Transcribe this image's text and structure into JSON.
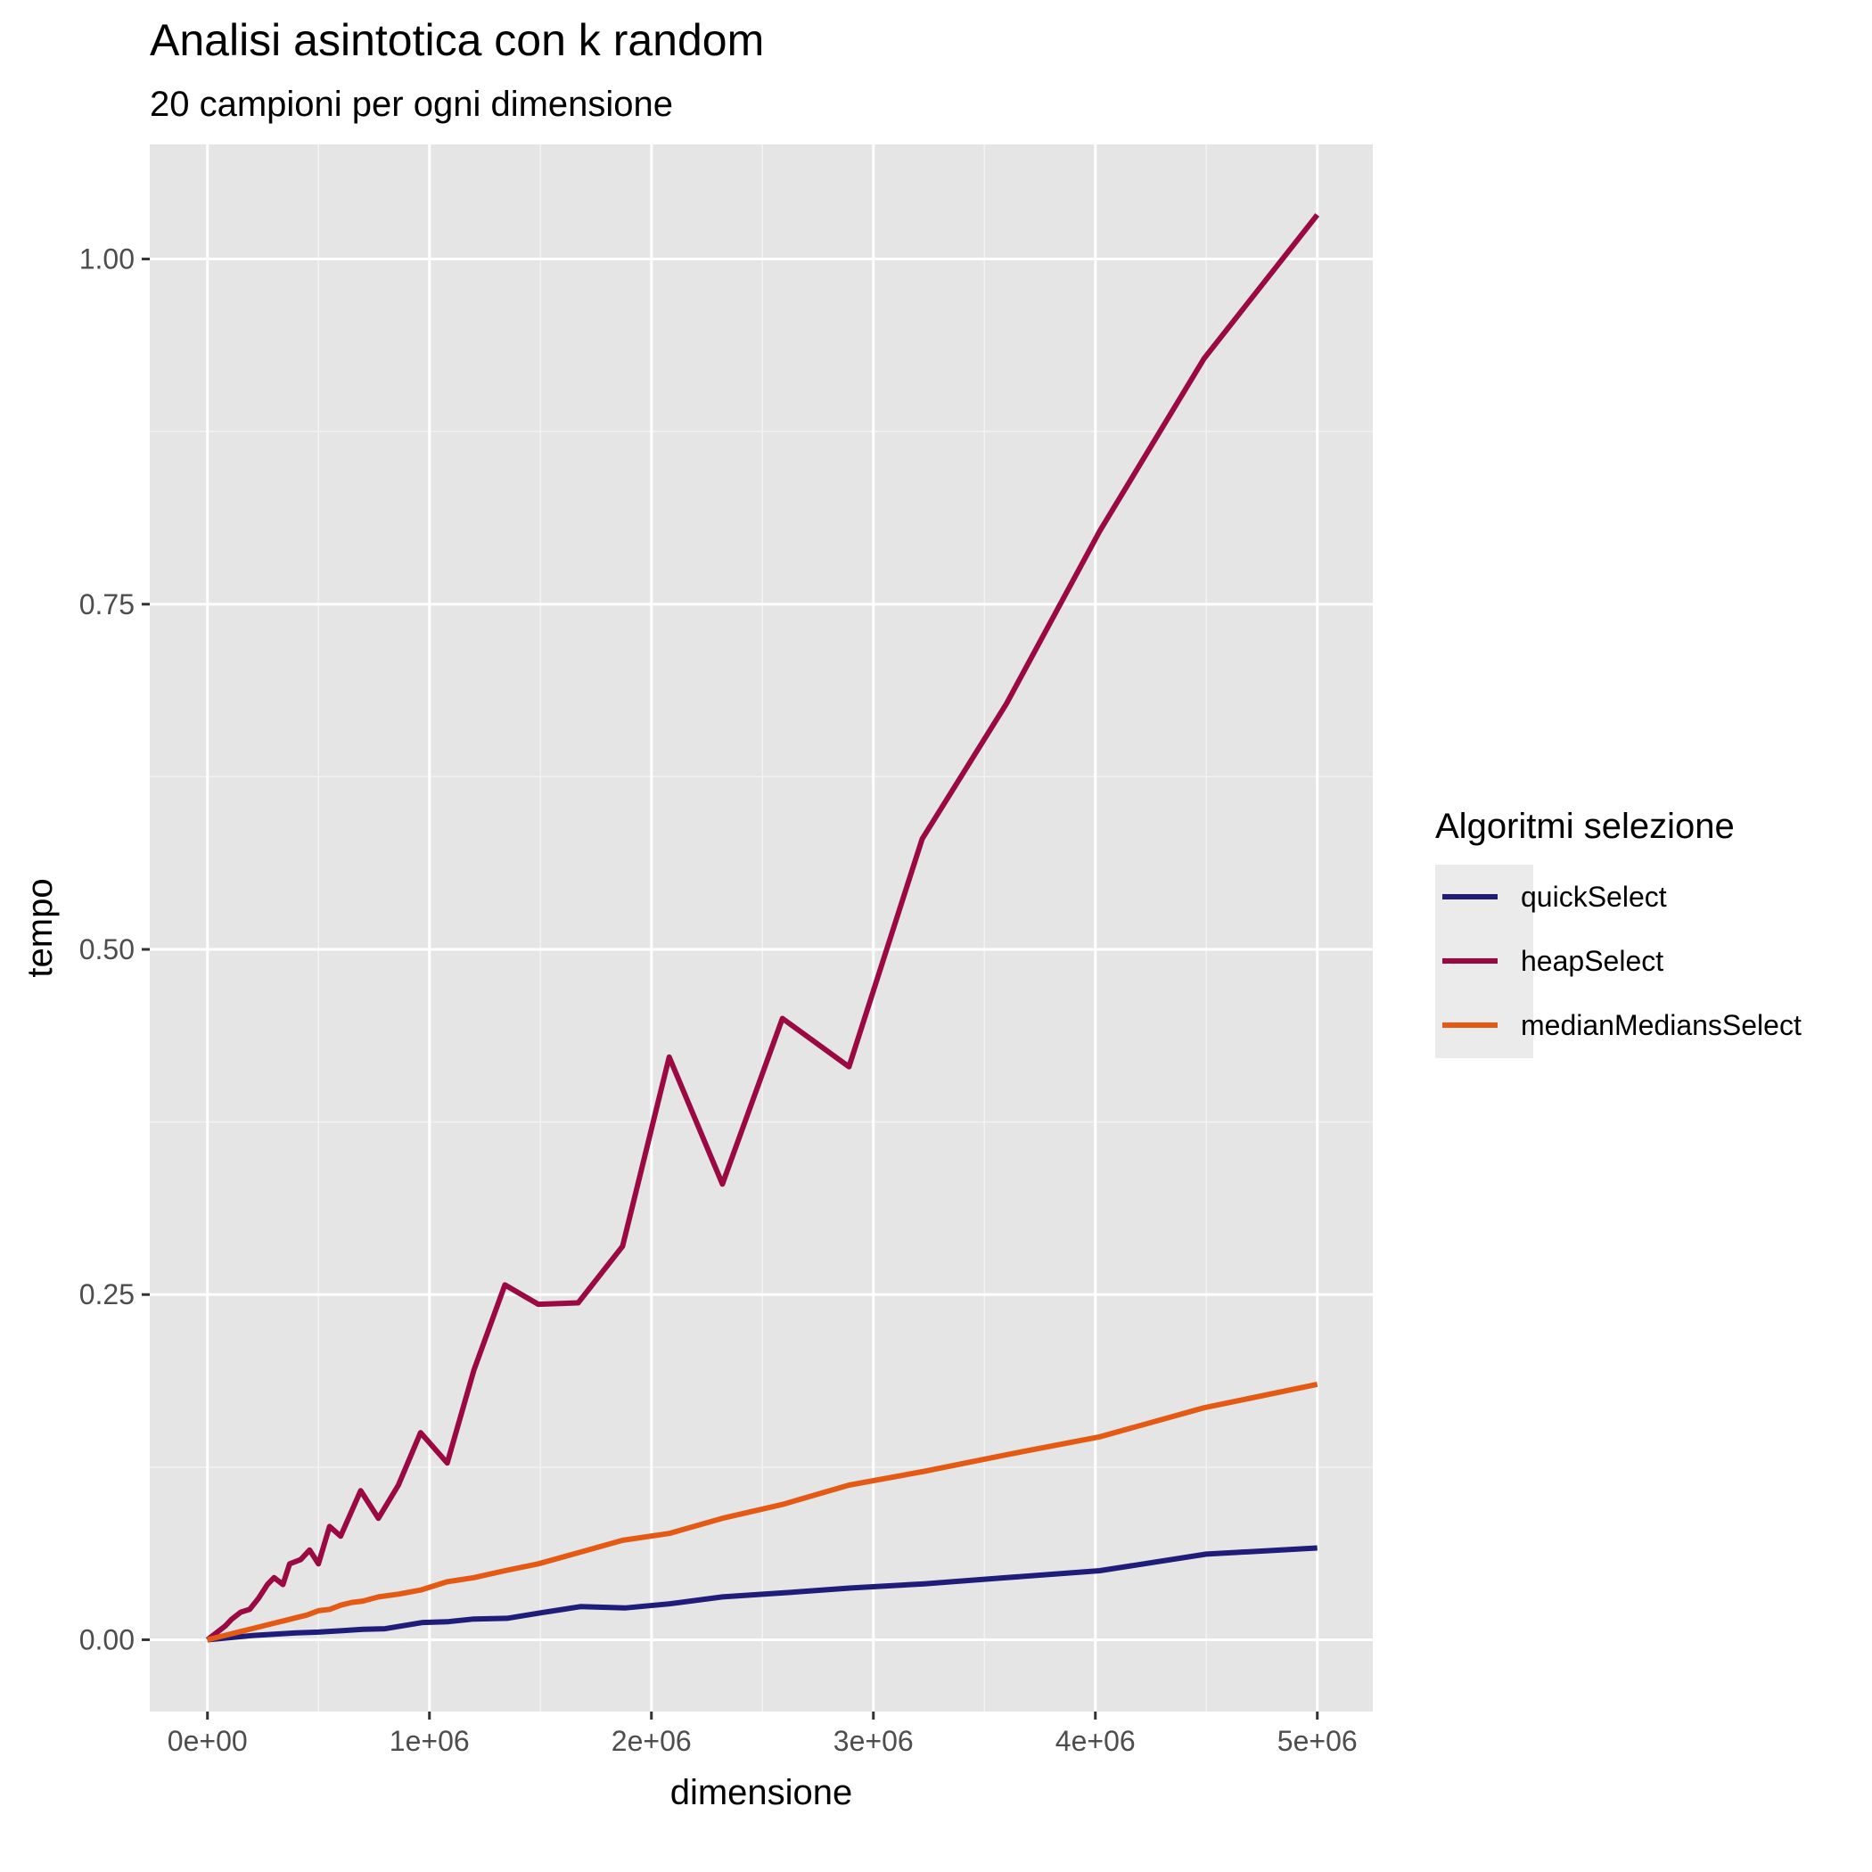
{
  "chart_data": {
    "type": "line",
    "title": "Analisi asintotica con k random",
    "subtitle": "20 campioni per ogni dimensione",
    "xlabel": "dimensione",
    "ylabel": "tempo",
    "xlim": [
      -260000,
      5250000
    ],
    "ylim": [
      -0.052,
      1.083
    ],
    "x_ticks": [
      0,
      1000000,
      2000000,
      3000000,
      4000000,
      5000000
    ],
    "x_tick_labels": [
      "0e+00",
      "1e+06",
      "2e+06",
      "3e+06",
      "4e+06",
      "5e+06"
    ],
    "y_ticks": [
      0,
      0.25,
      0.5,
      0.75,
      1.0
    ],
    "y_tick_labels": [
      "0.00",
      "0.25",
      "0.50",
      "0.75",
      "1.00"
    ],
    "grid": true,
    "legend": {
      "title": "Algoritmi selezione",
      "position": "right"
    },
    "series": [
      {
        "name": "quickSelect",
        "color": "#1f1c7a",
        "x": [
          0,
          100000,
          200000,
          300000,
          400000,
          500000,
          600000,
          700000,
          800000,
          970000,
          1080000,
          1200000,
          1350000,
          1500000,
          1680000,
          1880000,
          2080000,
          2320000,
          2600000,
          2900000,
          3230000,
          3600000,
          4020000,
          4500000,
          5000000
        ],
        "y": [
          0,
          0.0015,
          0.003,
          0.004,
          0.005,
          0.0055,
          0.0065,
          0.0075,
          0.008,
          0.0125,
          0.013,
          0.015,
          0.0155,
          0.0195,
          0.024,
          0.023,
          0.026,
          0.031,
          0.034,
          0.0375,
          0.0405,
          0.045,
          0.05,
          0.062,
          0.0665
        ]
      },
      {
        "name": "heapSelect",
        "color": "#9a0942",
        "x": [
          0,
          40000,
          80000,
          110000,
          150000,
          190000,
          230000,
          270000,
          300000,
          340000,
          370000,
          420000,
          460000,
          500000,
          550000,
          600000,
          690000,
          770000,
          860000,
          960000,
          1080000,
          1200000,
          1340000,
          1490000,
          1670000,
          1870000,
          2080000,
          2320000,
          2590000,
          2890000,
          3220000,
          3600000,
          4020000,
          4490000,
          5000000
        ],
        "y": [
          0,
          0.005,
          0.01,
          0.015,
          0.02,
          0.022,
          0.03,
          0.04,
          0.045,
          0.04,
          0.055,
          0.058,
          0.065,
          0.055,
          0.082,
          0.075,
          0.108,
          0.088,
          0.112,
          0.15,
          0.128,
          0.195,
          0.257,
          0.243,
          0.244,
          0.285,
          0.422,
          0.33,
          0.45,
          0.415,
          0.58,
          0.678,
          0.803,
          0.928,
          1.032
        ]
      },
      {
        "name": "medianMediansSelect",
        "color": "#e45a14",
        "x": [
          0,
          50000,
          100000,
          150000,
          200000,
          250000,
          300000,
          350000,
          400000,
          450000,
          500000,
          550000,
          600000,
          650000,
          700000,
          770000,
          860000,
          960000,
          1080000,
          1200000,
          1340000,
          1490000,
          1670000,
          1870000,
          2080000,
          2320000,
          2590000,
          2890000,
          3230000,
          3600000,
          4020000,
          4490000,
          5000000
        ],
        "y": [
          0,
          0.002,
          0.004,
          0.006,
          0.008,
          0.01,
          0.012,
          0.014,
          0.016,
          0.018,
          0.021,
          0.022,
          0.025,
          0.027,
          0.028,
          0.031,
          0.033,
          0.036,
          0.042,
          0.045,
          0.05,
          0.055,
          0.063,
          0.072,
          0.077,
          0.088,
          0.098,
          0.112,
          0.122,
          0.134,
          0.147,
          0.168,
          0.185
        ]
      }
    ]
  }
}
